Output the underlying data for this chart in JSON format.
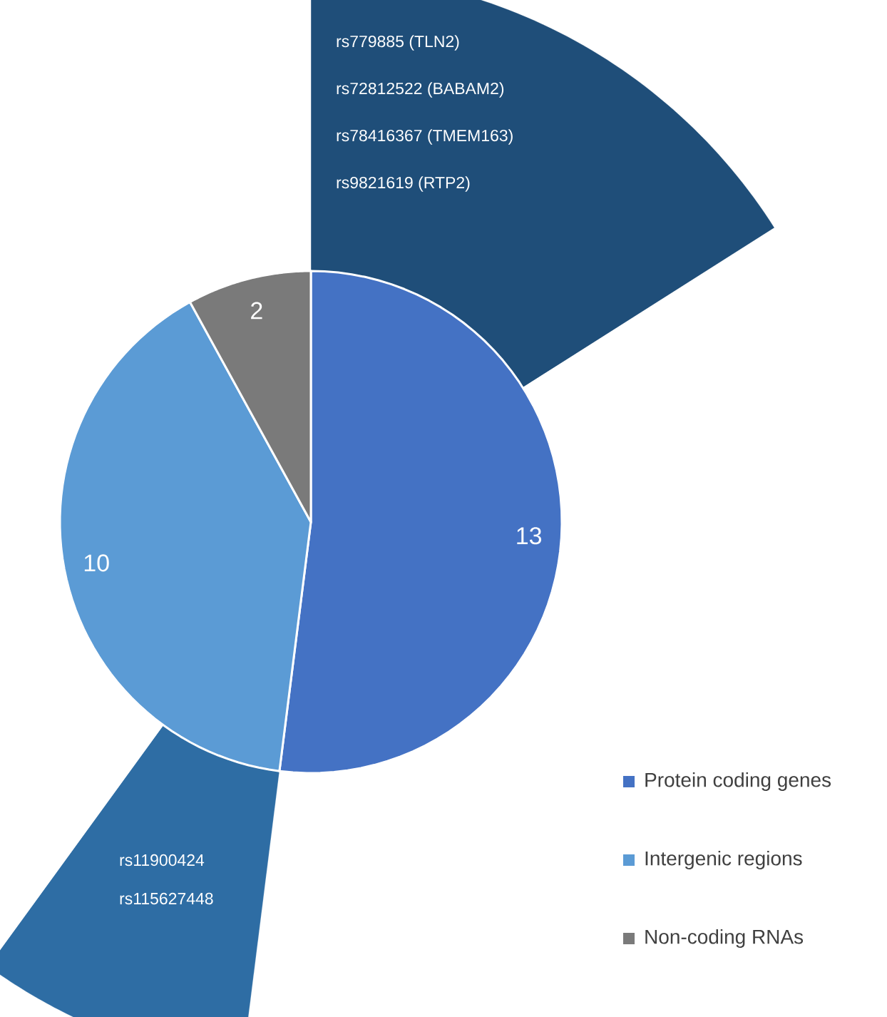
{
  "chart_data": {
    "type": "pie",
    "categories": [
      "Protein coding genes",
      "Intergenic regions",
      "Non-coding RNAs",
      null
    ],
    "series": [
      {
        "values": [
          13,
          10,
          2,
          null
        ],
        "colors": [
          "#4472c4",
          "#5b9bd5",
          "#7a7a7a",
          null
        ],
        "value_labels": [
          "13",
          "10",
          "2",
          null
        ]
      },
      {
        "values": [
          16,
          36,
          8,
          40
        ],
        "colors": [
          "#1f4e79",
          "#ffffff",
          "#2e6da4",
          "#ffffff"
        ]
      }
    ],
    "legend": "bottom right",
    "annotations": [
      "rs779885 (TLN2)",
      "rs72812522 (BABAM2)",
      "rs78416367 (TMEM163)",
      "rs9821619 (RTP2)",
      "rs11900424",
      "rs115627448"
    ]
  }
}
